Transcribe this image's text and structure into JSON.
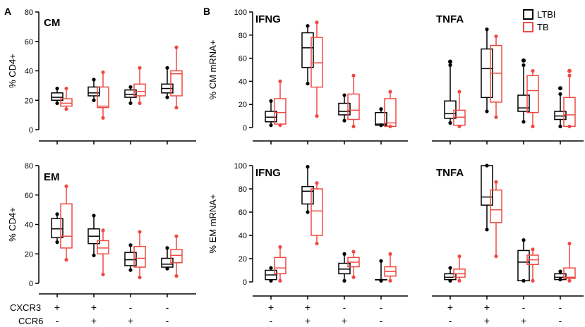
{
  "colors": {
    "ltbi": "#000000",
    "tb": "#ee4a44"
  },
  "chart_data": {
    "type": "box",
    "panel_letters": [
      "A",
      "B"
    ],
    "legend": {
      "placement": "top-right",
      "entries": [
        "LTBI",
        "TB"
      ]
    },
    "x_rows": [
      {
        "label": "CXCR3",
        "marks": [
          "+",
          "+",
          "-",
          "-"
        ]
      },
      {
        "label": "CCR6",
        "marks": [
          "-",
          "+",
          "+",
          "-"
        ]
      }
    ],
    "series_names": [
      "LTBI",
      "TB"
    ],
    "groups": [
      "CXCR3+CCR6-",
      "CXCR3+CCR6+",
      "CXCR3-CCR6+",
      "CXCR3-CCR6-"
    ],
    "panels": [
      {
        "id": "cm-cd4",
        "title": "CM",
        "ylabel": "% CD4+",
        "ylim": [
          0,
          80
        ],
        "yticks": [
          0,
          20,
          40,
          60,
          80
        ],
        "boxes": [
          {
            "series": "LTBI",
            "group": 0,
            "min": 18,
            "q1": 20,
            "median": 22,
            "q3": 25,
            "max": 28,
            "outliers": []
          },
          {
            "series": "TB",
            "group": 0,
            "min": 14,
            "q1": 16,
            "median": 18,
            "q3": 21,
            "max": 28,
            "outliers": []
          },
          {
            "series": "LTBI",
            "group": 1,
            "min": 20,
            "q1": 23,
            "median": 25,
            "q3": 29,
            "max": 34,
            "outliers": []
          },
          {
            "series": "TB",
            "group": 1,
            "min": 8,
            "q1": 15,
            "median": 16,
            "q3": 29,
            "max": 39,
            "outliers": []
          },
          {
            "series": "LTBI",
            "group": 2,
            "min": 18,
            "q1": 22,
            "median": 24,
            "q3": 27,
            "max": 29,
            "outliers": []
          },
          {
            "series": "TB",
            "group": 2,
            "min": 18,
            "q1": 23,
            "median": 26,
            "q3": 31,
            "max": 42,
            "outliers": []
          },
          {
            "series": "LTBI",
            "group": 3,
            "min": 22,
            "q1": 25,
            "median": 28,
            "q3": 31,
            "max": 42,
            "outliers": []
          },
          {
            "series": "TB",
            "group": 3,
            "min": 15,
            "q1": 23,
            "median": 38,
            "q3": 40,
            "max": 56,
            "outliers": []
          }
        ]
      },
      {
        "id": "cm-ifng",
        "title": "IFNG",
        "ylabel": "% CM mRNA+",
        "ylim": [
          0,
          100
        ],
        "yticks": [
          0,
          20,
          40,
          60,
          80,
          100
        ],
        "boxes": [
          {
            "series": "LTBI",
            "group": 0,
            "min": 2,
            "q1": 5,
            "median": 9,
            "q3": 14,
            "max": 23,
            "outliers": []
          },
          {
            "series": "TB",
            "group": 0,
            "min": 2,
            "q1": 3,
            "median": 13,
            "q3": 25,
            "max": 40,
            "outliers": []
          },
          {
            "series": "LTBI",
            "group": 1,
            "min": 38,
            "q1": 52,
            "median": 69,
            "q3": 82,
            "max": 88,
            "outliers": []
          },
          {
            "series": "TB",
            "group": 1,
            "min": 10,
            "q1": 35,
            "median": 56,
            "q3": 78,
            "max": 91,
            "outliers": []
          },
          {
            "series": "LTBI",
            "group": 2,
            "min": 6,
            "q1": 11,
            "median": 14,
            "q3": 21,
            "max": 28,
            "outliers": []
          },
          {
            "series": "TB",
            "group": 2,
            "min": 1,
            "q1": 7,
            "median": 15,
            "q3": 29,
            "max": 45,
            "outliers": []
          },
          {
            "series": "LTBI",
            "group": 3,
            "min": 2,
            "q1": 2,
            "median": 3,
            "q3": 13,
            "max": 16,
            "outliers": []
          },
          {
            "series": "TB",
            "group": 3,
            "min": 1,
            "q1": 1,
            "median": 4,
            "q3": 25,
            "max": 31,
            "outliers": []
          }
        ]
      },
      {
        "id": "cm-tnfa",
        "title": "TNFA",
        "ylabel": "",
        "ylim": [
          0,
          100
        ],
        "yticks": [],
        "boxes": [
          {
            "series": "LTBI",
            "group": 0,
            "min": 4,
            "q1": 8,
            "median": 12,
            "q3": 23,
            "max": 54,
            "outliers": [
              57
            ]
          },
          {
            "series": "TB",
            "group": 0,
            "min": 1,
            "q1": 2,
            "median": 9,
            "q3": 15,
            "max": 31,
            "outliers": []
          },
          {
            "series": "LTBI",
            "group": 1,
            "min": 14,
            "q1": 26,
            "median": 51,
            "q3": 68,
            "max": 85,
            "outliers": []
          },
          {
            "series": "TB",
            "group": 1,
            "min": 9,
            "q1": 22,
            "median": 47,
            "q3": 71,
            "max": 79,
            "outliers": []
          },
          {
            "series": "LTBI",
            "group": 2,
            "min": 5,
            "q1": 14,
            "median": 17,
            "q3": 28,
            "max": 54,
            "outliers": [
              58
            ]
          },
          {
            "series": "TB",
            "group": 2,
            "min": 1,
            "q1": 13,
            "median": 32,
            "q3": 45,
            "max": 49,
            "outliers": []
          },
          {
            "series": "LTBI",
            "group": 3,
            "min": 1,
            "q1": 7,
            "median": 10,
            "q3": 14,
            "max": 29,
            "outliers": [
              34
            ]
          },
          {
            "series": "TB",
            "group": 3,
            "min": 1,
            "q1": 1,
            "median": 11,
            "q3": 26,
            "max": 45,
            "outliers": [
              49
            ]
          }
        ]
      },
      {
        "id": "em-cd4",
        "title": "EM",
        "ylabel": "% CD4+",
        "ylim": [
          0,
          80
        ],
        "yticks": [
          0,
          20,
          40,
          60,
          80
        ],
        "boxes": [
          {
            "series": "LTBI",
            "group": 0,
            "min": 28,
            "q1": 31,
            "median": 37,
            "q3": 44,
            "max": 47,
            "outliers": []
          },
          {
            "series": "TB",
            "group": 0,
            "min": 16,
            "q1": 24,
            "median": 32,
            "q3": 54,
            "max": 66,
            "outliers": []
          },
          {
            "series": "LTBI",
            "group": 1,
            "min": 19,
            "q1": 27,
            "median": 32,
            "q3": 37,
            "max": 46,
            "outliers": []
          },
          {
            "series": "TB",
            "group": 1,
            "min": 6,
            "q1": 20,
            "median": 24,
            "q3": 29,
            "max": 36,
            "outliers": []
          },
          {
            "series": "LTBI",
            "group": 2,
            "min": 9,
            "q1": 12,
            "median": 16,
            "q3": 21,
            "max": 26,
            "outliers": []
          },
          {
            "series": "TB",
            "group": 2,
            "min": 4,
            "q1": 11,
            "median": 17,
            "q3": 25,
            "max": 35,
            "outliers": []
          },
          {
            "series": "LTBI",
            "group": 3,
            "min": 10,
            "q1": 11,
            "median": 13,
            "q3": 17,
            "max": 24,
            "outliers": []
          },
          {
            "series": "TB",
            "group": 3,
            "min": 5,
            "q1": 14,
            "median": 19,
            "q3": 23,
            "max": 32,
            "outliers": []
          }
        ]
      },
      {
        "id": "em-ifng",
        "title": "IFNG",
        "ylabel": "% EM mRNA+",
        "ylim": [
          0,
          100
        ],
        "yticks": [
          0,
          20,
          40,
          60,
          80,
          100
        ],
        "boxes": [
          {
            "series": "LTBI",
            "group": 0,
            "min": 1,
            "q1": 2,
            "median": 6,
            "q3": 10,
            "max": 12,
            "outliers": []
          },
          {
            "series": "TB",
            "group": 0,
            "min": 1,
            "q1": 7,
            "median": 12,
            "q3": 21,
            "max": 30,
            "outliers": []
          },
          {
            "series": "LTBI",
            "group": 1,
            "min": 60,
            "q1": 67,
            "median": 78,
            "q3": 82,
            "max": 99,
            "outliers": []
          },
          {
            "series": "TB",
            "group": 1,
            "min": 33,
            "q1": 40,
            "median": 61,
            "q3": 80,
            "max": 85,
            "outliers": []
          },
          {
            "series": "LTBI",
            "group": 2,
            "min": 1,
            "q1": 7,
            "median": 11,
            "q3": 16,
            "max": 24,
            "outliers": []
          },
          {
            "series": "TB",
            "group": 2,
            "min": 4,
            "q1": 13,
            "median": 17,
            "q3": 21,
            "max": 26,
            "outliers": []
          },
          {
            "series": "LTBI",
            "group": 3,
            "min": 1,
            "q1": 2,
            "median": 2,
            "q3": 2,
            "max": 18,
            "outliers": []
          },
          {
            "series": "TB",
            "group": 3,
            "min": 1,
            "q1": 5,
            "median": 9,
            "q3": 13,
            "max": 24,
            "outliers": []
          }
        ]
      },
      {
        "id": "em-tnfa",
        "title": "TNFA",
        "ylabel": "",
        "ylim": [
          0,
          100
        ],
        "yticks": [],
        "boxes": [
          {
            "series": "LTBI",
            "group": 0,
            "min": 1,
            "q1": 2,
            "median": 4,
            "q3": 7,
            "max": 12,
            "outliers": []
          },
          {
            "series": "TB",
            "group": 0,
            "min": 1,
            "q1": 4,
            "median": 7,
            "q3": 11,
            "max": 22,
            "outliers": []
          },
          {
            "series": "LTBI",
            "group": 1,
            "min": 45,
            "q1": 66,
            "median": 73,
            "q3": 100,
            "max": 100,
            "outliers": []
          },
          {
            "series": "TB",
            "group": 1,
            "min": 22,
            "q1": 51,
            "median": 62,
            "q3": 79,
            "max": 86,
            "outliers": []
          },
          {
            "series": "LTBI",
            "group": 2,
            "min": 1,
            "q1": 1,
            "median": 17,
            "q3": 27,
            "max": 36,
            "outliers": []
          },
          {
            "series": "TB",
            "group": 2,
            "min": 1,
            "q1": 15,
            "median": 19,
            "q3": 23,
            "max": 28,
            "outliers": []
          },
          {
            "series": "LTBI",
            "group": 3,
            "min": 2,
            "q1": 2,
            "median": 4,
            "q3": 7,
            "max": 9,
            "outliers": []
          },
          {
            "series": "TB",
            "group": 3,
            "min": 1,
            "q1": 3,
            "median": 4,
            "q3": 12,
            "max": 33,
            "outliers": []
          }
        ]
      }
    ]
  }
}
